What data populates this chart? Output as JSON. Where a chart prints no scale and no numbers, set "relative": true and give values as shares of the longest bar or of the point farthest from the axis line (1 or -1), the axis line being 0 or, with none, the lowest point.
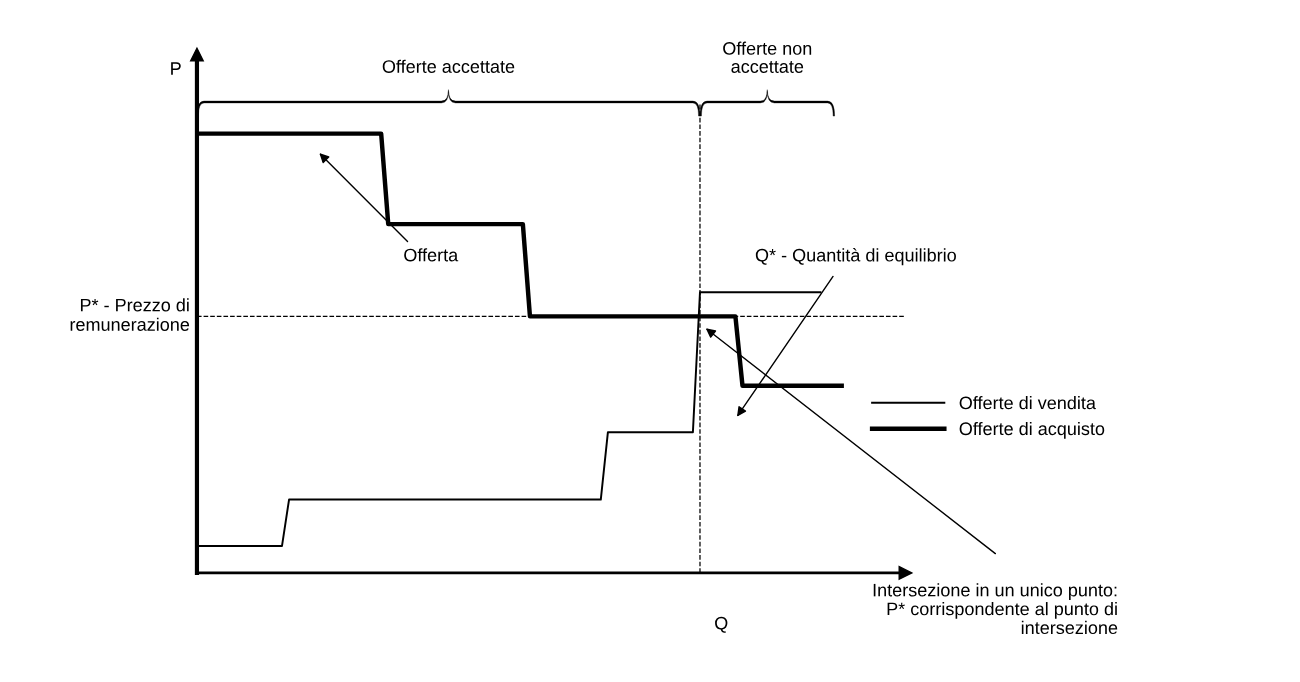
{
  "chart_data": {
    "type": "line",
    "relative": true,
    "xlabel": "Q",
    "ylabel": "P",
    "legend": "right",
    "categories": [
      null,
      null,
      null,
      null,
      null,
      null,
      null,
      null,
      null,
      null,
      null,
      null,
      null,
      null,
      null,
      null,
      null,
      null,
      null,
      null,
      null,
      null,
      null,
      null,
      null,
      null,
      null,
      null,
      null,
      null,
      null,
      null,
      null,
      null,
      null,
      null,
      null,
      null,
      null,
      null,
      null,
      null,
      null,
      null,
      null,
      null,
      null,
      null,
      null,
      null,
      null,
      null,
      null,
      null,
      null,
      null,
      null,
      null,
      null,
      null,
      null,
      null,
      null,
      null,
      null,
      null,
      null,
      null,
      null,
      null,
      null,
      null,
      null,
      null,
      null,
      null,
      null,
      null,
      null,
      null,
      null,
      null,
      null,
      null,
      null,
      null,
      null,
      null,
      null,
      null,
      null,
      null,
      null,
      null,
      null,
      null,
      null,
      null,
      null,
      null,
      null
    ],
    "series": [
      {
        "name": "Offerte di vendita",
        "color": "#000000",
        "values": [
          0.061,
          0.061,
          0.061,
          0.061,
          0.061,
          0.061,
          0.061,
          0.061,
          0.061,
          0.061,
          0.061,
          0.061,
          0.061,
          0.167,
          0.167,
          0.167,
          0.167,
          0.167,
          0.167,
          0.167,
          0.167,
          0.167,
          0.167,
          0.167,
          0.167,
          0.167,
          0.167,
          0.167,
          0.167,
          0.167,
          0.167,
          0.167,
          0.167,
          0.167,
          0.167,
          0.167,
          0.167,
          0.167,
          0.167,
          0.167,
          0.167,
          0.167,
          0.167,
          0.167,
          0.167,
          0.167,
          0.167,
          0.167,
          0.167,
          0.167,
          0.167,
          0.167,
          0.167,
          0.167,
          0.167,
          0.167,
          0.167,
          0.167,
          0.32,
          0.32,
          0.32,
          0.32,
          0.32,
          0.32,
          0.32,
          0.32,
          0.32,
          0.32,
          0.32,
          0.32,
          0.32,
          0.639,
          0.639,
          0.639,
          0.639,
          0.639,
          0.639,
          0.639,
          0.639,
          0.639,
          0.639,
          0.639,
          0.639,
          0.639,
          0.639,
          0.639,
          0.639,
          0.639,
          0.639,
          null,
          null,
          null,
          null,
          null,
          null,
          null,
          null,
          null,
          null,
          null,
          null
        ]
      },
      {
        "name": "Offerte di acquisto",
        "color": "#000000",
        "values": [
          1.0,
          1.0,
          1.0,
          1.0,
          1.0,
          1.0,
          1.0,
          1.0,
          1.0,
          1.0,
          1.0,
          1.0,
          1.0,
          1.0,
          1.0,
          1.0,
          1.0,
          1.0,
          1.0,
          1.0,
          1.0,
          1.0,
          1.0,
          1.0,
          1.0,
          1.0,
          1.0,
          0.794,
          0.794,
          0.794,
          0.794,
          0.794,
          0.794,
          0.794,
          0.794,
          0.794,
          0.794,
          0.794,
          0.794,
          0.794,
          0.794,
          0.794,
          0.794,
          0.794,
          0.794,
          0.794,
          0.794,
          0.584,
          0.584,
          0.584,
          0.584,
          0.584,
          0.584,
          0.584,
          0.584,
          0.584,
          0.584,
          0.584,
          0.584,
          0.584,
          0.584,
          0.584,
          0.584,
          0.584,
          0.584,
          0.584,
          0.584,
          0.584,
          0.584,
          0.584,
          0.584,
          0.584,
          0.584,
          0.584,
          0.584,
          0.584,
          0.584,
          0.426,
          0.426,
          0.426,
          0.426,
          0.426,
          0.426,
          0.426,
          0.426,
          0.426,
          0.426,
          0.426,
          0.426,
          0.426,
          0.426,
          0.426,
          null,
          null,
          null,
          null,
          null,
          null,
          null,
          null,
          null
        ]
      }
    ],
    "ref_lines": [
      {
        "axis": "y",
        "value": 0.584,
        "label": "P* - Prezzo di\nremunerazione",
        "line_style": "dashed"
      }
    ],
    "annotations": [
      "Offerte accettate",
      "Offerte non\naccettate",
      "Offerta",
      "Q* - Quantità di equilibrio",
      "Intersezione in un unico punto:\nP* corrispondente al punto di\nintersezione"
    ]
  }
}
